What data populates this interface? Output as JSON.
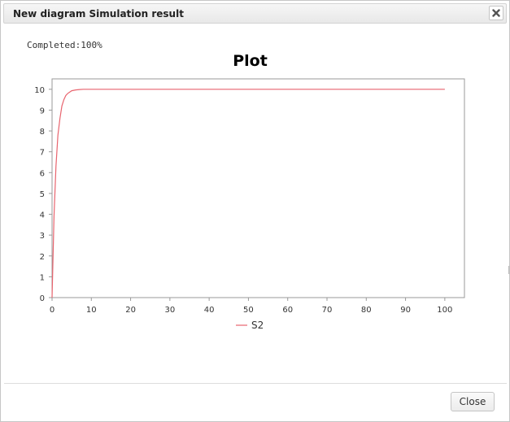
{
  "dialog": {
    "title": "New diagram Simulation result",
    "status_text": "Completed:100%",
    "close_button_label": "Close",
    "close_icon": "close-x-icon"
  },
  "chart_data": {
    "type": "line",
    "title": "Plot",
    "xlabel": "",
    "ylabel": "",
    "xlim": [
      0,
      105
    ],
    "ylim": [
      0,
      10.5
    ],
    "x_ticks": [
      0,
      10,
      20,
      30,
      40,
      50,
      60,
      70,
      80,
      90,
      100
    ],
    "y_ticks": [
      0,
      1,
      2,
      3,
      4,
      5,
      6,
      7,
      8,
      9,
      10
    ],
    "grid": false,
    "legend_position": "bottom-center",
    "series": [
      {
        "name": "S2",
        "color": "#e8646e",
        "x": [
          0,
          0.5,
          1,
          1.5,
          2,
          2.5,
          3,
          3.5,
          4,
          5,
          6,
          7,
          8,
          10,
          20,
          40,
          60,
          80,
          100
        ],
        "y": [
          0,
          3.9,
          6.3,
          7.8,
          8.6,
          9.2,
          9.5,
          9.7,
          9.8,
          9.93,
          9.97,
          9.99,
          10,
          10,
          10,
          10,
          10,
          10,
          10
        ]
      }
    ]
  }
}
